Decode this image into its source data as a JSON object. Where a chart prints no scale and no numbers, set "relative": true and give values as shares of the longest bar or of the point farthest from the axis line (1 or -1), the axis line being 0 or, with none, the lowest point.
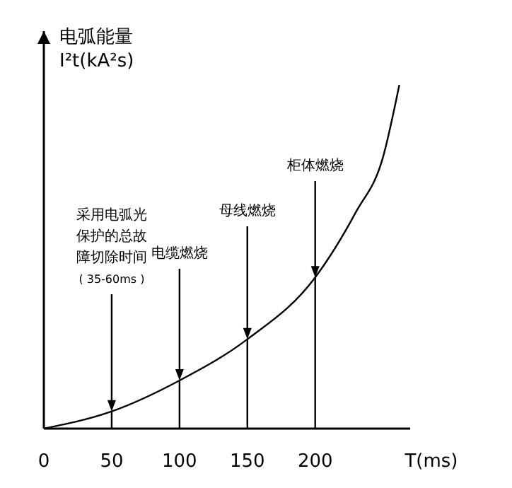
{
  "chart_data": {
    "type": "line",
    "relative": true,
    "ylabel": "电弧能量\nI²t(kA²s)",
    "xlabel": "T(ms)",
    "x": [
      0,
      50,
      100,
      150,
      200,
      230,
      250,
      262
    ],
    "series": [
      {
        "color": "#000000",
        "values": [
          0,
          0.05,
          0.14,
          0.26,
          0.44,
          0.63,
          0.79,
          1
        ]
      }
    ],
    "xlim": [
      0,
      270
    ],
    "xticks": [
      0,
      50,
      100,
      150,
      200
    ],
    "marker": "none",
    "line_style": "solid",
    "grid": false,
    "legend": false,
    "annotations": [
      {
        "text": "采用电弧光保护的总故障切除时间( 35-60ms )",
        "x": 50,
        "y": 0.05
      },
      {
        "text": "电缆燃烧",
        "x": 100,
        "y": 0.14
      },
      {
        "text": "母线燃烧",
        "x": 150,
        "y": 0.26
      },
      {
        "text": "柜体燃烧",
        "x": 200,
        "y": 0.44
      }
    ]
  }
}
